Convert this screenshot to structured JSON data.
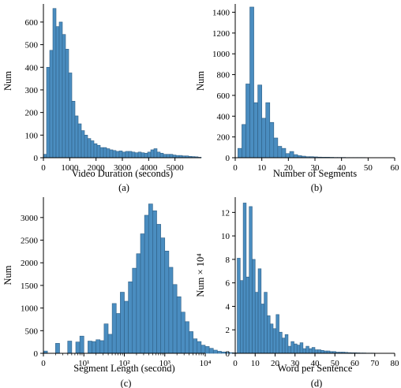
{
  "colors": {
    "bar_fill": "#4a8dc0",
    "bar_edge": "#2f5f85"
  },
  "chart_data": [
    {
      "id": "a",
      "type": "bar",
      "caption": "(a)",
      "xlabel": "Video Duration (seconds)",
      "ylabel": "Num",
      "xlim": [
        0,
        6000
      ],
      "ylim": [
        0,
        680
      ],
      "xticks": [
        0,
        1000,
        2000,
        3000,
        4000,
        5000
      ],
      "yticks": [
        0,
        100,
        200,
        300,
        400,
        500,
        600
      ],
      "bin_start": 0,
      "bin_width": 120,
      "values": [
        15,
        400,
        475,
        660,
        580,
        600,
        545,
        480,
        375,
        250,
        185,
        150,
        120,
        100,
        85,
        75,
        62,
        55,
        45,
        45,
        40,
        35,
        32,
        28,
        30,
        25,
        28,
        28,
        25,
        22,
        25,
        22,
        20,
        25,
        35,
        40,
        25,
        20,
        15,
        15,
        15,
        12,
        10,
        10,
        8,
        8,
        6,
        5,
        4,
        2
      ]
    },
    {
      "id": "b",
      "type": "bar",
      "caption": "(b)",
      "xlabel": "Number of Segments",
      "ylabel": "Num",
      "xlim": [
        0,
        60
      ],
      "ylim": [
        0,
        1480
      ],
      "xticks": [
        0,
        10,
        20,
        30,
        40,
        50,
        60
      ],
      "yticks": [
        0,
        200,
        400,
        600,
        800,
        1000,
        1200,
        1400
      ],
      "bin_start": 1,
      "bin_width": 1.5,
      "values": [
        90,
        320,
        710,
        1450,
        530,
        700,
        380,
        530,
        340,
        190,
        110,
        90,
        40,
        60,
        30,
        20,
        15,
        10,
        10,
        8,
        6,
        5,
        5,
        4,
        3,
        3,
        3,
        2,
        2,
        2,
        2,
        2,
        1,
        1,
        1,
        1,
        1,
        1
      ]
    },
    {
      "id": "c",
      "type": "bar",
      "caption": "(c)",
      "xlabel": "Segment Length (second)",
      "ylabel": "Num",
      "xscale": "log",
      "xlim": [
        1,
        10000
      ],
      "ylim": [
        0,
        3450
      ],
      "xticks": [
        {
          "value": 1,
          "label": "0"
        },
        {
          "value": 10,
          "label": "10¹"
        },
        {
          "value": 100,
          "label": "10²"
        },
        {
          "value": 1000,
          "label": "10³"
        },
        {
          "value": 10000,
          "label": "10⁴"
        }
      ],
      "yticks": [
        0,
        500,
        1000,
        1500,
        2000,
        2500,
        3000
      ],
      "bin_log_start": 0,
      "bin_log_width": 0.1,
      "values": [
        50,
        0,
        0,
        220,
        0,
        0,
        270,
        0,
        250,
        380,
        0,
        270,
        260,
        300,
        280,
        650,
        420,
        1100,
        880,
        1350,
        1150,
        1580,
        1880,
        2200,
        2640,
        3050,
        3300,
        3150,
        2850,
        2550,
        2260,
        1900,
        1520,
        1250,
        910,
        700,
        480,
        320,
        260,
        180,
        150,
        110,
        70,
        45,
        30,
        25,
        15,
        10,
        8,
        5,
        3,
        2
      ]
    },
    {
      "id": "d",
      "type": "bar",
      "caption": "(d)",
      "xlabel": "Word per Sentence",
      "ylabel": "Num × 10⁴",
      "xlim": [
        0,
        80
      ],
      "ylim": [
        0,
        13.3
      ],
      "xticks": [
        0,
        10,
        20,
        30,
        40,
        50,
        60,
        70,
        80
      ],
      "yticks": [
        0,
        2,
        4,
        6,
        8,
        10,
        12
      ],
      "bin_start": 1,
      "bin_width": 1.5,
      "values": [
        8.1,
        6.2,
        12.8,
        6.5,
        12.5,
        8.0,
        5.2,
        7.2,
        4.2,
        5.2,
        3.2,
        2.5,
        2.1,
        3.3,
        1.8,
        1.3,
        1.6,
        0.6,
        1.0,
        0.8,
        0.7,
        0.9,
        0.4,
        0.6,
        0.4,
        0.5,
        0.3,
        0.3,
        0.25,
        0.2,
        0.2,
        0.15,
        0.15,
        0.1,
        0.1,
        0.1,
        0.08,
        0.06,
        0.05,
        0.05,
        0.04,
        0.03,
        0.03,
        0.02,
        0.02,
        0.02,
        0.01,
        0.01
      ]
    }
  ]
}
